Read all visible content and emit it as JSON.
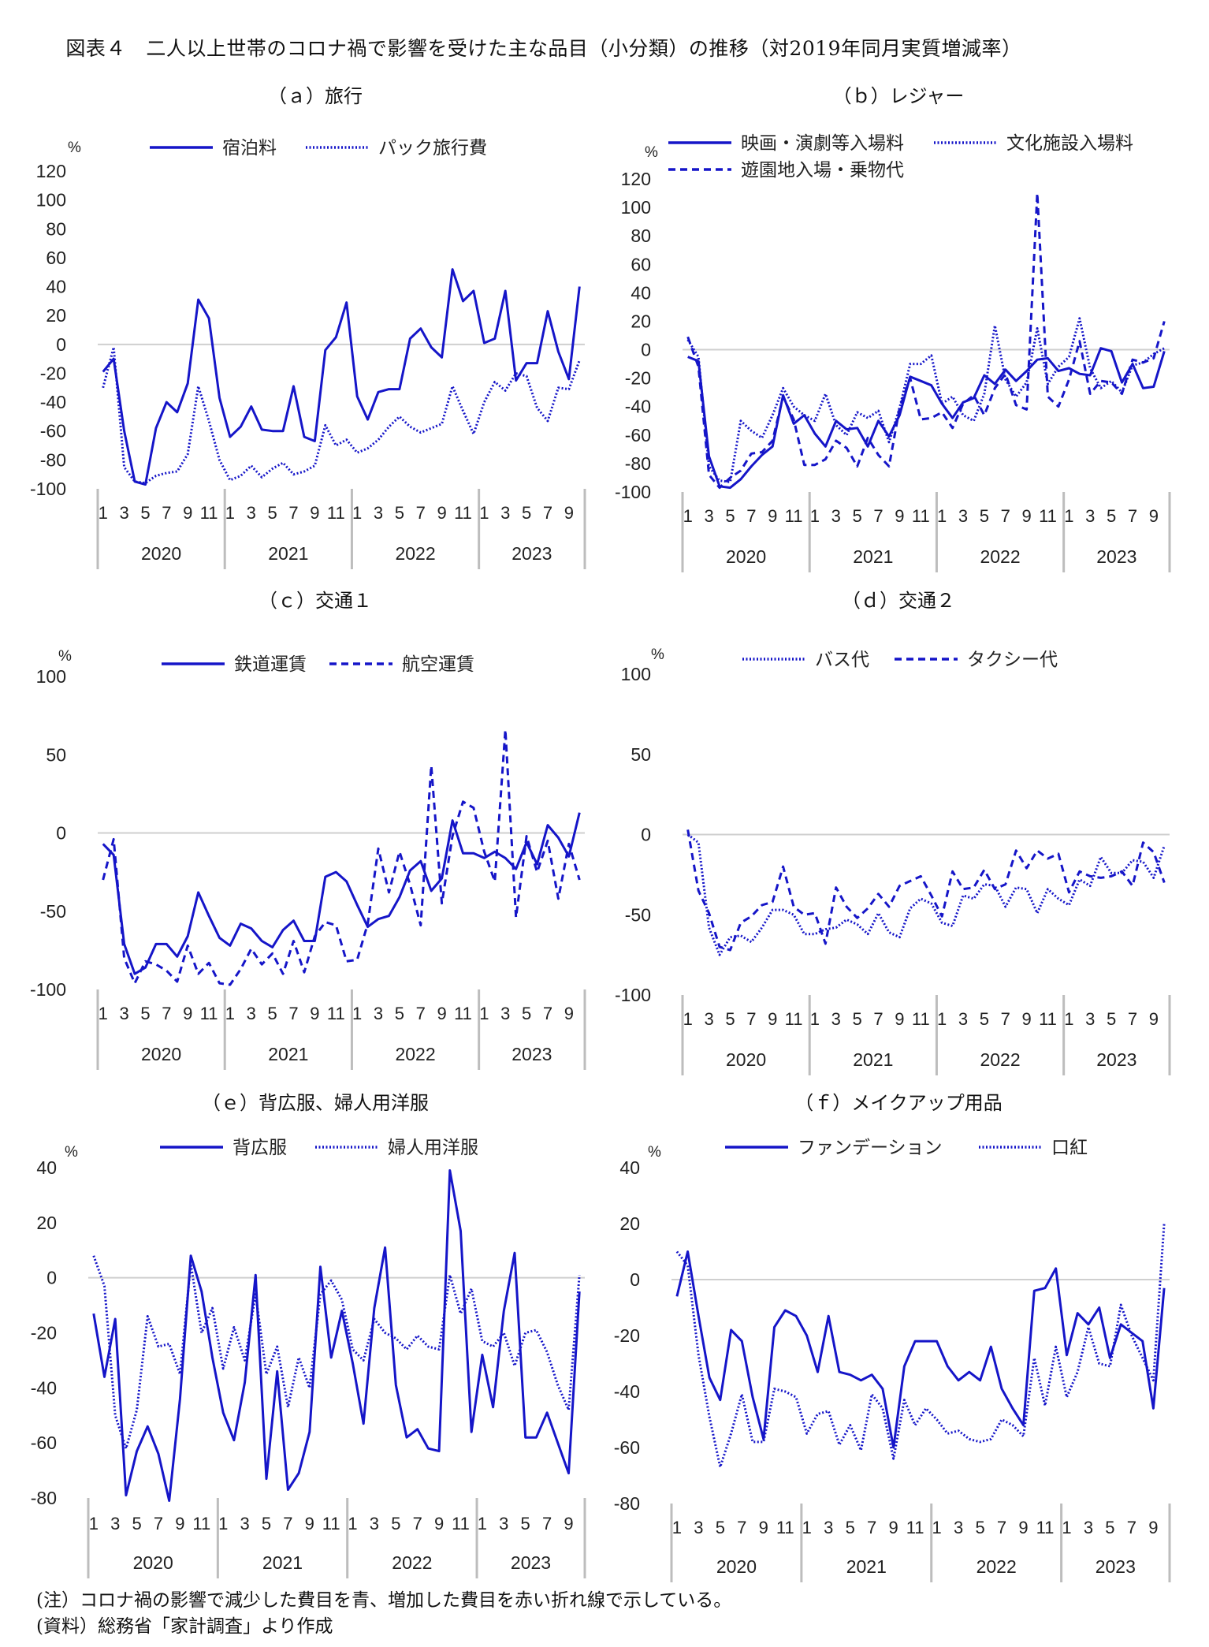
{
  "figure_title": "図表４　二人以上世帯のコロナ禍で影響を受けた主な品目（小分類）の推移（対2019年同月実質増減率）",
  "notes": [
    "(注）コロナ禍の影響で減少した費目を青、増加した費目を赤い折れ線で示している。",
    "(資料）総務省「家計調査」より作成"
  ],
  "colors": {
    "line": "#1515c8",
    "zero_line": "#cfcfcf",
    "axis": "#bdbdbd"
  },
  "chart_data": [
    {
      "id": "a",
      "type": "line",
      "title": "（ａ）旅行",
      "unit": "%",
      "ylim": [
        -100,
        120
      ],
      "yticks": [
        -100,
        -80,
        -60,
        -40,
        -20,
        0,
        20,
        40,
        60,
        80,
        100,
        120
      ],
      "month_labels": [
        "1",
        "3",
        "5",
        "7",
        "9",
        "11",
        "1",
        "3",
        "5",
        "7",
        "9",
        "11",
        "1",
        "3",
        "5",
        "7",
        "9",
        "11",
        "1",
        "3",
        "5",
        "7",
        "9"
      ],
      "years": [
        "2020",
        "2021",
        "2022",
        "2023"
      ],
      "series": [
        {
          "name": "宿泊料",
          "style": "solid",
          "values": [
            -19,
            -10,
            -60,
            -95,
            -97,
            -58,
            -40,
            -47,
            -27,
            31,
            18,
            -37,
            -64,
            -57,
            -43,
            -59,
            -60,
            -60,
            -29,
            -64,
            -67,
            -4,
            5,
            29,
            -36,
            -52,
            -33,
            -31,
            -31,
            4,
            11,
            -2,
            -9,
            52,
            30,
            37,
            1,
            4,
            37,
            -25,
            -13,
            -13,
            23,
            -5,
            -24,
            40
          ]
        },
        {
          "name": "パック旅行費",
          "style": "dotted",
          "values": [
            -30,
            -2,
            -85,
            -95,
            -96,
            -91,
            -89,
            -88,
            -76,
            -29,
            -53,
            -80,
            -94,
            -91,
            -84,
            -92,
            -86,
            -82,
            -90,
            -88,
            -84,
            -56,
            -70,
            -66,
            -75,
            -72,
            -66,
            -57,
            -50,
            -57,
            -61,
            -58,
            -55,
            -29,
            -46,
            -62,
            -40,
            -26,
            -32,
            -20,
            -22,
            -44,
            -53,
            -30,
            -31,
            -11
          ]
        }
      ]
    },
    {
      "id": "b",
      "type": "line",
      "title": "（ｂ）レジャー",
      "unit": "%",
      "ylim": [
        -100,
        120
      ],
      "yticks": [
        -100,
        -80,
        -60,
        -40,
        -20,
        0,
        20,
        40,
        60,
        80,
        100,
        120
      ],
      "month_labels": [
        "1",
        "3",
        "5",
        "7",
        "9",
        "11",
        "1",
        "3",
        "5",
        "7",
        "9",
        "11",
        "1",
        "3",
        "5",
        "7",
        "9",
        "11",
        "1",
        "3",
        "5",
        "7",
        "9"
      ],
      "years": [
        "2020",
        "2021",
        "2022",
        "2023"
      ],
      "series": [
        {
          "name": "映画・演劇等入場料",
          "style": "solid",
          "values": [
            -5,
            -8,
            -75,
            -96,
            -97,
            -91,
            -82,
            -74,
            -68,
            -32,
            -52,
            -46,
            -59,
            -68,
            -50,
            -56,
            -55,
            -68,
            -50,
            -61,
            -46,
            -19,
            -22,
            -25,
            -38,
            -48,
            -37,
            -34,
            -18,
            -24,
            -14,
            -22,
            -15,
            -7,
            -6,
            -15,
            -13,
            -17,
            -18,
            1,
            -1,
            -23,
            -10,
            -27,
            -26,
            -1
          ]
        },
        {
          "name": "文化施設入場料",
          "style": "dotted",
          "values": [
            7,
            -5,
            -82,
            -92,
            -93,
            -50,
            -57,
            -62,
            -46,
            -27,
            -40,
            -46,
            -50,
            -31,
            -53,
            -60,
            -44,
            -48,
            -43,
            -65,
            -41,
            -10,
            -10,
            -4,
            -38,
            -33,
            -46,
            -50,
            -31,
            17,
            -21,
            -33,
            -23,
            15,
            -24,
            -12,
            -5,
            22,
            -13,
            -27,
            -22,
            -30,
            -11,
            -9,
            -3,
            1
          ]
        },
        {
          "name": "遊園地入場・乗物代",
          "style": "dashed",
          "values": [
            9,
            -12,
            -88,
            -97,
            -90,
            -85,
            -73,
            -72,
            -64,
            -33,
            -49,
            -81,
            -81,
            -77,
            -64,
            -69,
            -82,
            -62,
            -74,
            -82,
            -41,
            -20,
            -49,
            -48,
            -44,
            -55,
            -38,
            -32,
            -46,
            -27,
            -17,
            -39,
            -42,
            110,
            -33,
            -40,
            -21,
            6,
            -31,
            -22,
            -23,
            -31,
            -7,
            -9,
            -6,
            20
          ]
        }
      ]
    },
    {
      "id": "c",
      "type": "line",
      "title": "（ｃ）交通１",
      "unit": "%",
      "ylim": [
        -100,
        100
      ],
      "yticks": [
        -100,
        -50,
        0,
        50,
        100
      ],
      "month_labels": [
        "1",
        "3",
        "5",
        "7",
        "9",
        "11",
        "1",
        "3",
        "5",
        "7",
        "9",
        "11",
        "1",
        "3",
        "5",
        "7",
        "9",
        "11",
        "1",
        "3",
        "5",
        "7",
        "9"
      ],
      "years": [
        "2020",
        "2021",
        "2022",
        "2023"
      ],
      "series": [
        {
          "name": "鉄道運賃",
          "style": "solid",
          "values": [
            -7,
            -14,
            -71,
            -90,
            -86,
            -71,
            -71,
            -79,
            -66,
            -38,
            -53,
            -67,
            -72,
            -58,
            -61,
            -69,
            -73,
            -62,
            -56,
            -69,
            -69,
            -28,
            -25,
            -31,
            -46,
            -60,
            -55,
            -53,
            -41,
            -24,
            -18,
            -37,
            -29,
            8,
            -13,
            -13,
            -16,
            -12,
            -16,
            -23,
            -6,
            -20,
            5,
            -3,
            -15,
            13
          ]
        },
        {
          "name": "航空運賃",
          "style": "dashed",
          "values": [
            -30,
            -4,
            -80,
            -96,
            -82,
            -84,
            -88,
            -95,
            -72,
            -90,
            -83,
            -96,
            -97,
            -87,
            -74,
            -84,
            -77,
            -90,
            -69,
            -89,
            -66,
            -57,
            -59,
            -82,
            -81,
            -58,
            -10,
            -38,
            -12,
            -33,
            -59,
            43,
            -45,
            -2,
            20,
            16,
            -12,
            -31,
            66,
            -54,
            -2,
            -25,
            -5,
            -42,
            -7,
            -30
          ]
        }
      ]
    },
    {
      "id": "d",
      "type": "line",
      "title": "（ｄ）交通２",
      "unit": "%",
      "ylim": [
        -100,
        100
      ],
      "yticks": [
        -100,
        -50,
        0,
        50,
        100
      ],
      "month_labels": [
        "1",
        "3",
        "5",
        "7",
        "9",
        "11",
        "1",
        "3",
        "5",
        "7",
        "9",
        "11",
        "1",
        "3",
        "5",
        "7",
        "9",
        "11",
        "1",
        "3",
        "5",
        "7",
        "9"
      ],
      "years": [
        "2020",
        "2021",
        "2022",
        "2023"
      ],
      "series": [
        {
          "name": "バス代",
          "style": "dotted",
          "values": [
            0,
            -5,
            -58,
            -75,
            -64,
            -63,
            -67,
            -58,
            -47,
            -47,
            -50,
            -62,
            -62,
            -59,
            -58,
            -53,
            -56,
            -62,
            -49,
            -61,
            -64,
            -46,
            -40,
            -43,
            -55,
            -57,
            -38,
            -40,
            -31,
            -32,
            -45,
            -33,
            -34,
            -49,
            -34,
            -40,
            -44,
            -28,
            -32,
            -14,
            -24,
            -24,
            -16,
            -17,
            -27,
            -7
          ]
        },
        {
          "name": "タクシー代",
          "style": "dashed",
          "values": [
            3,
            -35,
            -49,
            -70,
            -72,
            -55,
            -51,
            -44,
            -42,
            -20,
            -45,
            -50,
            -49,
            -68,
            -33,
            -45,
            -52,
            -46,
            -37,
            -45,
            -32,
            -29,
            -26,
            -38,
            -51,
            -23,
            -34,
            -33,
            -22,
            -34,
            -31,
            -10,
            -21,
            -10,
            -15,
            -12,
            -36,
            -23,
            -26,
            -27,
            -26,
            -23,
            -32,
            -5,
            -11,
            -30
          ]
        }
      ]
    },
    {
      "id": "e",
      "type": "line",
      "title": "（ｅ）背広服、婦人用洋服",
      "unit": "%",
      "ylim": [
        -80,
        40
      ],
      "yticks": [
        -80,
        -60,
        -40,
        -20,
        0,
        20,
        40
      ],
      "month_labels": [
        "1",
        "3",
        "5",
        "7",
        "9",
        "11",
        "1",
        "3",
        "5",
        "7",
        "9",
        "11",
        "1",
        "3",
        "5",
        "7",
        "9",
        "11",
        "1",
        "3",
        "5",
        "7",
        "9"
      ],
      "years": [
        "2020",
        "2021",
        "2022",
        "2023"
      ],
      "series": [
        {
          "name": "背広服",
          "style": "solid",
          "values": [
            -13,
            -36,
            -15,
            -79,
            -63,
            -54,
            -64,
            -81,
            -44,
            8,
            -5,
            -29,
            -49,
            -59,
            -38,
            1,
            -73,
            -34,
            -77,
            -71,
            -56,
            4,
            -29,
            -12,
            -31,
            -53,
            -11,
            11,
            -39,
            -58,
            -55,
            -62,
            -63,
            39,
            17,
            -56,
            -28,
            -47,
            -12,
            9,
            -58,
            -58,
            -49,
            -60,
            -71,
            -5
          ]
        },
        {
          "name": "婦人用洋服",
          "style": "dotted",
          "values": [
            8,
            -3,
            -50,
            -62,
            -48,
            -14,
            -25,
            -24,
            -35,
            5,
            -20,
            -11,
            -33,
            -18,
            -30,
            -6,
            -35,
            -25,
            -47,
            -29,
            -40,
            -6,
            -1,
            -8,
            -26,
            -30,
            -15,
            -20,
            -22,
            -26,
            -21,
            -25,
            -26,
            1,
            -13,
            -4,
            -23,
            -25,
            -20,
            -32,
            -20,
            -19,
            -27,
            -39,
            -48,
            1
          ]
        }
      ]
    },
    {
      "id": "f",
      "type": "line",
      "title": "（ｆ）メイクアップ用品",
      "unit": "%",
      "ylim": [
        -80,
        40
      ],
      "yticks": [
        -80,
        -60,
        -40,
        -20,
        0,
        20,
        40
      ],
      "month_labels": [
        "1",
        "3",
        "5",
        "7",
        "9",
        "11",
        "1",
        "3",
        "5",
        "7",
        "9",
        "11",
        "1",
        "3",
        "5",
        "7",
        "9",
        "11",
        "1",
        "3",
        "5",
        "7",
        "9"
      ],
      "years": [
        "2020",
        "2021",
        "2022",
        "2023"
      ],
      "series": [
        {
          "name": "ファンデーション",
          "style": "solid",
          "values": [
            -6,
            10,
            -13,
            -35,
            -43,
            -18,
            -22,
            -42,
            -57,
            -17,
            -11,
            -13,
            -20,
            -33,
            -13,
            -33,
            -34,
            -36,
            -34,
            -39,
            -60,
            -31,
            -22,
            -22,
            -22,
            -31,
            -36,
            -33,
            -36,
            -24,
            -39,
            -46,
            -52,
            -4,
            -3,
            4,
            -27,
            -12,
            -16,
            -10,
            -28,
            -16,
            -19,
            -22,
            -46,
            -3
          ]
        },
        {
          "name": "口紅",
          "style": "dotted",
          "values": [
            10,
            5,
            -27,
            -49,
            -67,
            -55,
            -41,
            -58,
            -58,
            -39,
            -40,
            -42,
            -55,
            -48,
            -47,
            -59,
            -52,
            -61,
            -41,
            -46,
            -64,
            -43,
            -52,
            -46,
            -50,
            -55,
            -54,
            -57,
            -58,
            -57,
            -50,
            -52,
            -56,
            -28,
            -45,
            -24,
            -42,
            -33,
            -17,
            -30,
            -31,
            -9,
            -20,
            -28,
            -36,
            20
          ]
        }
      ]
    }
  ]
}
